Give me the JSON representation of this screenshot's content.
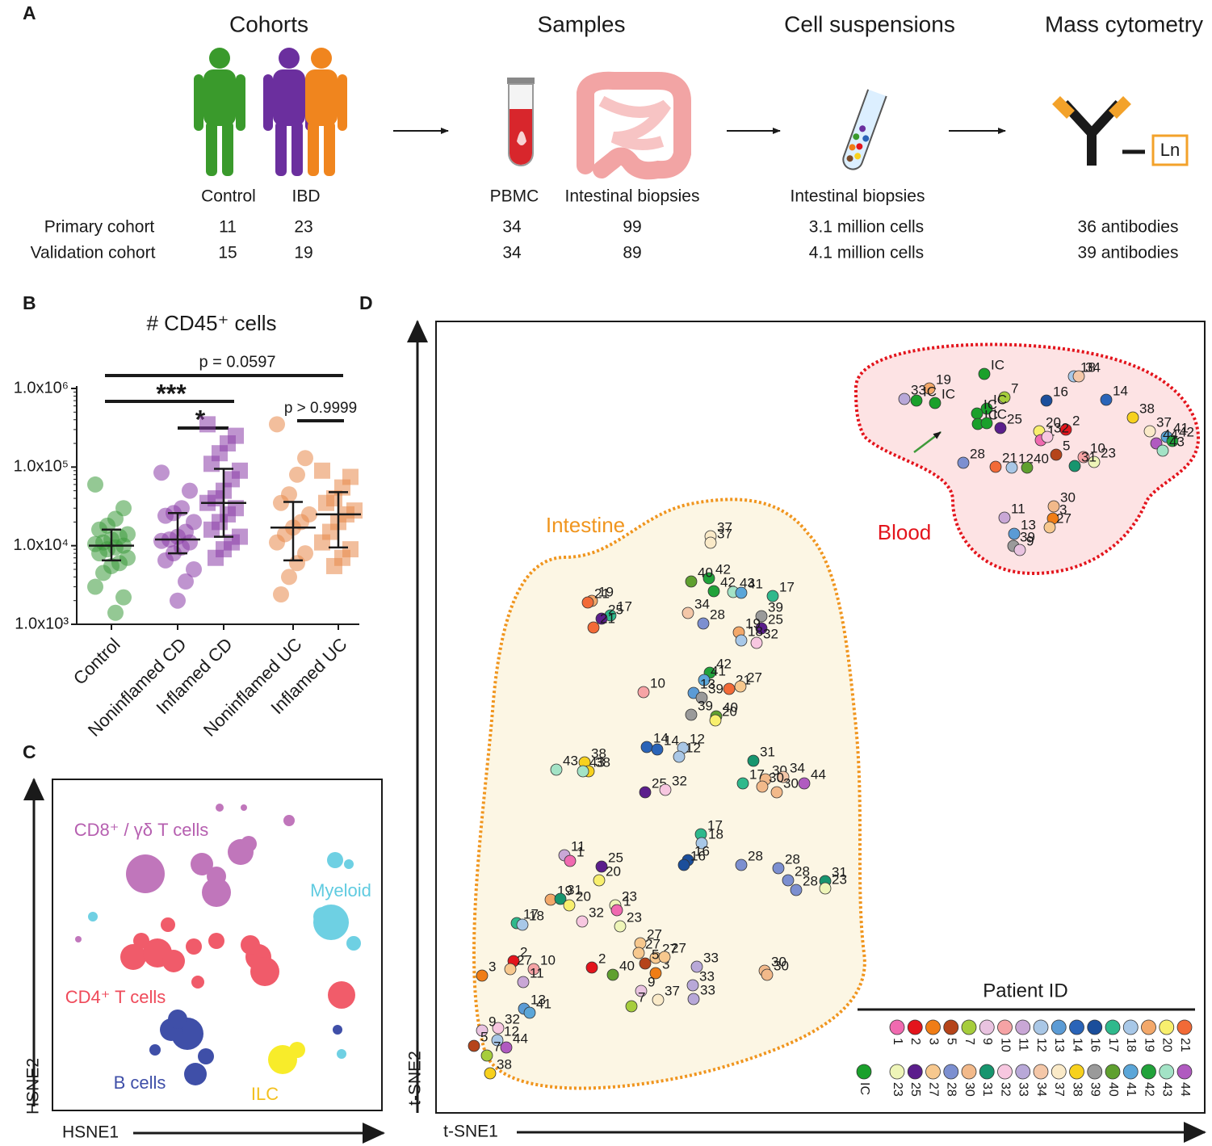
{
  "panel_labels": [
    "A",
    "B",
    "C",
    "D"
  ],
  "panel_a": {
    "steps": [
      "Cohorts",
      "Samples",
      "Cell suspensions",
      "Mass cytometry"
    ],
    "groups": [
      "Control",
      "IBD",
      "PBMC",
      "Intestinal biopsies",
      "Intestinal biopsies"
    ],
    "ln": "Ln",
    "rows": [
      {
        "label": "Primary cohort",
        "values": [
          11,
          23,
          34,
          99,
          "3.1 million cells",
          "36 antibodies"
        ]
      },
      {
        "label": "Validation cohort",
        "values": [
          15,
          19,
          34,
          89,
          "4.1 million cells",
          "39 antibodies"
        ]
      }
    ]
  },
  "panel_c": {
    "populations": [
      "CD8⁺ / γδ T cells",
      "Myeloid",
      "CD4⁺ T cells",
      "B cells",
      "ILC"
    ],
    "x_label": "HSNE1",
    "y_label": "HSNE2"
  },
  "chart_data": [
    {
      "type": "strip",
      "title": "# CD45⁺ cells",
      "categories": [
        "Control",
        "Noninflamed CD",
        "Inflamed CD",
        "Noninflamed UC",
        "Inflamed UC"
      ],
      "colors": [
        "#3d9b3d",
        "#8a3ca8",
        "#8a3ca8",
        "#e8894a",
        "#e8894a"
      ],
      "markers": [
        "circle",
        "circle",
        "square",
        "circle",
        "square"
      ],
      "log_scale": true,
      "ylim": [
        1000,
        1000000
      ],
      "yticks": [
        {
          "value": 1000,
          "label": "1.0x10³"
        },
        {
          "value": 10000,
          "label": "1.0x10⁴"
        },
        {
          "value": 100000,
          "label": "1.0x10⁵"
        },
        {
          "value": 1000000,
          "label": "1.0x10⁶"
        }
      ],
      "values": [
        [
          60000,
          30000,
          22000,
          18000,
          16000,
          14000,
          13000,
          12000,
          11000,
          10500,
          10000,
          9500,
          9000,
          8000,
          7000,
          6000,
          5500,
          4500,
          3000,
          2200,
          1400
        ],
        [
          85000,
          50000,
          30000,
          26000,
          24000,
          20000,
          15000,
          13000,
          12000,
          11500,
          11000,
          9500,
          8000,
          6500,
          5000,
          3500,
          2000
        ],
        [
          350000,
          250000,
          200000,
          150000,
          110000,
          90000,
          70000,
          50000,
          40000,
          35000,
          30000,
          25000,
          20000,
          16000,
          13000,
          11000,
          9000,
          7000
        ],
        [
          350000,
          130000,
          80000,
          45000,
          35000,
          25000,
          20000,
          17000,
          14000,
          11000,
          8000,
          6000,
          4000,
          2400
        ],
        [
          90000,
          75000,
          55000,
          40000,
          35000,
          28000,
          25000,
          20000,
          15000,
          11000,
          9000,
          7000,
          5500
        ]
      ],
      "median": [
        10000,
        12000,
        35000,
        17000,
        25000
      ],
      "q1": [
        6500,
        8000,
        13000,
        6500,
        9500
      ],
      "q3": [
        16000,
        26000,
        95000,
        36000,
        48000
      ],
      "annotations": [
        "p = 0.0597",
        "***",
        "*",
        "p > 0.9999"
      ]
    },
    {
      "type": "scatter",
      "x_label": "t-SNE1",
      "y_label": "t-SNE2",
      "regions": [
        "Intestine",
        "Blood"
      ],
      "legend_title": "Patient ID",
      "patients": [
        [
          "1",
          "2",
          "3",
          "5",
          "7",
          "9",
          "10",
          "11",
          "12",
          "13",
          "14",
          "16",
          "17",
          "18",
          "19",
          "20",
          "21"
        ],
        [
          "IC",
          "23",
          "25",
          "27",
          "28",
          "30",
          "31",
          "32",
          "33",
          "34",
          "37",
          "38",
          "39",
          "40",
          "41",
          "42",
          "43",
          "44"
        ]
      ],
      "colors": [
        [
          "#f06ab0",
          "#e3141c",
          "#f07d16",
          "#b5441a",
          "#a6cd3c",
          "#e9c3e0",
          "#f6a3a5",
          "#c9a7d6",
          "#a9c7e6",
          "#5b9bd5",
          "#2a64b8",
          "#1b4e9b",
          "#2fb98c",
          "#a8c8e8",
          "#f3a86a",
          "#f8ef6e",
          "#f26a37"
        ],
        [
          "#1aa02b",
          "#eef5b8",
          "#5b1e8c",
          "#f7c88e",
          "#7c8fd0",
          "#f2b98a",
          "#17956e",
          "#f7c7e0",
          "#b8a8d8",
          "#f4c7a8",
          "#faeac8",
          "#f7d11e",
          "#9a9a9a",
          "#5fa02f",
          "#5ba6d8",
          "#21a23a",
          "#a3e3c6",
          "#b05ac0"
        ]
      ],
      "xlim": [
        0,
        952
      ],
      "ylim": [
        0,
        980
      ],
      "labels": [
        "33",
        "19",
        "IC",
        "IC",
        "IC",
        "7",
        "IC",
        "IC",
        "IC",
        "IC",
        "25",
        "18",
        "34",
        "16",
        "14",
        "20",
        "2",
        "1",
        "32",
        "5",
        "38",
        "37",
        "41",
        "42",
        "44",
        "43",
        "10",
        "23",
        "31",
        "28",
        "21",
        "12",
        "40",
        "30",
        "3",
        "27",
        "11",
        "13",
        "39",
        "9",
        "37",
        "37",
        "42",
        "40",
        "42",
        "43",
        "41",
        "17",
        "39",
        "25",
        "19",
        "21",
        "17",
        "25",
        "21",
        "34",
        "28",
        "19",
        "18",
        "32",
        "42",
        "41",
        "13",
        "21",
        "27",
        "10",
        "39",
        "39",
        "40",
        "20",
        "14",
        "14",
        "12",
        "12",
        "38",
        "38",
        "43",
        "43",
        "31",
        "30",
        "34",
        "44",
        "17",
        "30",
        "30",
        "25",
        "32",
        "17",
        "18",
        "16",
        "16",
        "11",
        "1",
        "25",
        "20",
        "28",
        "28",
        "28",
        "28",
        "31",
        "23",
        "19",
        "31",
        "20",
        "23",
        "1",
        "32",
        "23",
        "17",
        "18",
        "27",
        "27",
        "27",
        "5",
        "3",
        "27",
        "2",
        "40",
        "9",
        "7",
        "37",
        "33",
        "33",
        "33",
        "30",
        "30",
        "3",
        "2",
        "27",
        "10",
        "11",
        "13",
        "41",
        "32",
        "9",
        "12",
        "5",
        "7",
        "44",
        "38"
      ],
      "x": [
        580,
        611,
        595,
        618,
        679,
        704,
        682,
        670,
        671,
        682,
        699,
        790,
        796,
        756,
        830,
        747,
        780,
        749,
        757,
        768,
        863,
        884,
        905,
        912,
        892,
        900,
        802,
        815,
        791,
        653,
        693,
        713,
        732,
        765,
        764,
        760,
        704,
        716,
        715,
        723,
        340,
        340,
        338,
        316,
        344,
        368,
        378,
        417,
        403,
        403,
        193,
        188,
        216,
        205,
        195,
        312,
        331,
        375,
        378,
        397,
        339,
        332,
        319,
        363,
        377,
        257,
        329,
        316,
        347,
        346,
        261,
        274,
        306,
        301,
        184,
        189,
        149,
        182,
        393,
        408,
        430,
        456,
        380,
        404,
        422,
        259,
        284,
        328,
        329,
        312,
        307,
        159,
        166,
        205,
        202,
        378,
        424,
        436,
        446,
        482,
        482,
        142,
        154,
        165,
        222,
        224,
        181,
        228,
        100,
        107,
        253,
        272,
        251,
        259,
        272,
        283,
        193,
        219,
        254,
        242,
        275,
        323,
        318,
        319,
        407,
        410,
        57,
        96,
        92,
        121,
        108,
        109,
        116,
        77,
        57,
        76,
        47,
        63,
        87,
        67
      ],
      "y": [
        884,
        897,
        882,
        879,
        915,
        886,
        872,
        866,
        853,
        854,
        848,
        912,
        912,
        882,
        883,
        844,
        846,
        833,
        837,
        815,
        861,
        844,
        837,
        832,
        829,
        820,
        812,
        806,
        801,
        805,
        800,
        799,
        799,
        751,
        736,
        725,
        737,
        717,
        702,
        697,
        714,
        706,
        662,
        658,
        646,
        645,
        644,
        640,
        615,
        600,
        634,
        632,
        616,
        612,
        601,
        619,
        606,
        595,
        585,
        582,
        545,
        536,
        520,
        525,
        528,
        521,
        514,
        493,
        491,
        486,
        453,
        450,
        452,
        441,
        434,
        423,
        425,
        423,
        436,
        413,
        416,
        408,
        408,
        404,
        397,
        397,
        400,
        345,
        334,
        313,
        307,
        319,
        312,
        305,
        288,
        307,
        303,
        288,
        276,
        287,
        278,
        264,
        265,
        257,
        257,
        251,
        237,
        231,
        235,
        233,
        210,
        192,
        198,
        185,
        173,
        193,
        180,
        171,
        151,
        132,
        140,
        181,
        158,
        141,
        176,
        171,
        170,
        188,
        178,
        178,
        162,
        129,
        124,
        105,
        102,
        90,
        83,
        71,
        81,
        49
      ]
    }
  ]
}
